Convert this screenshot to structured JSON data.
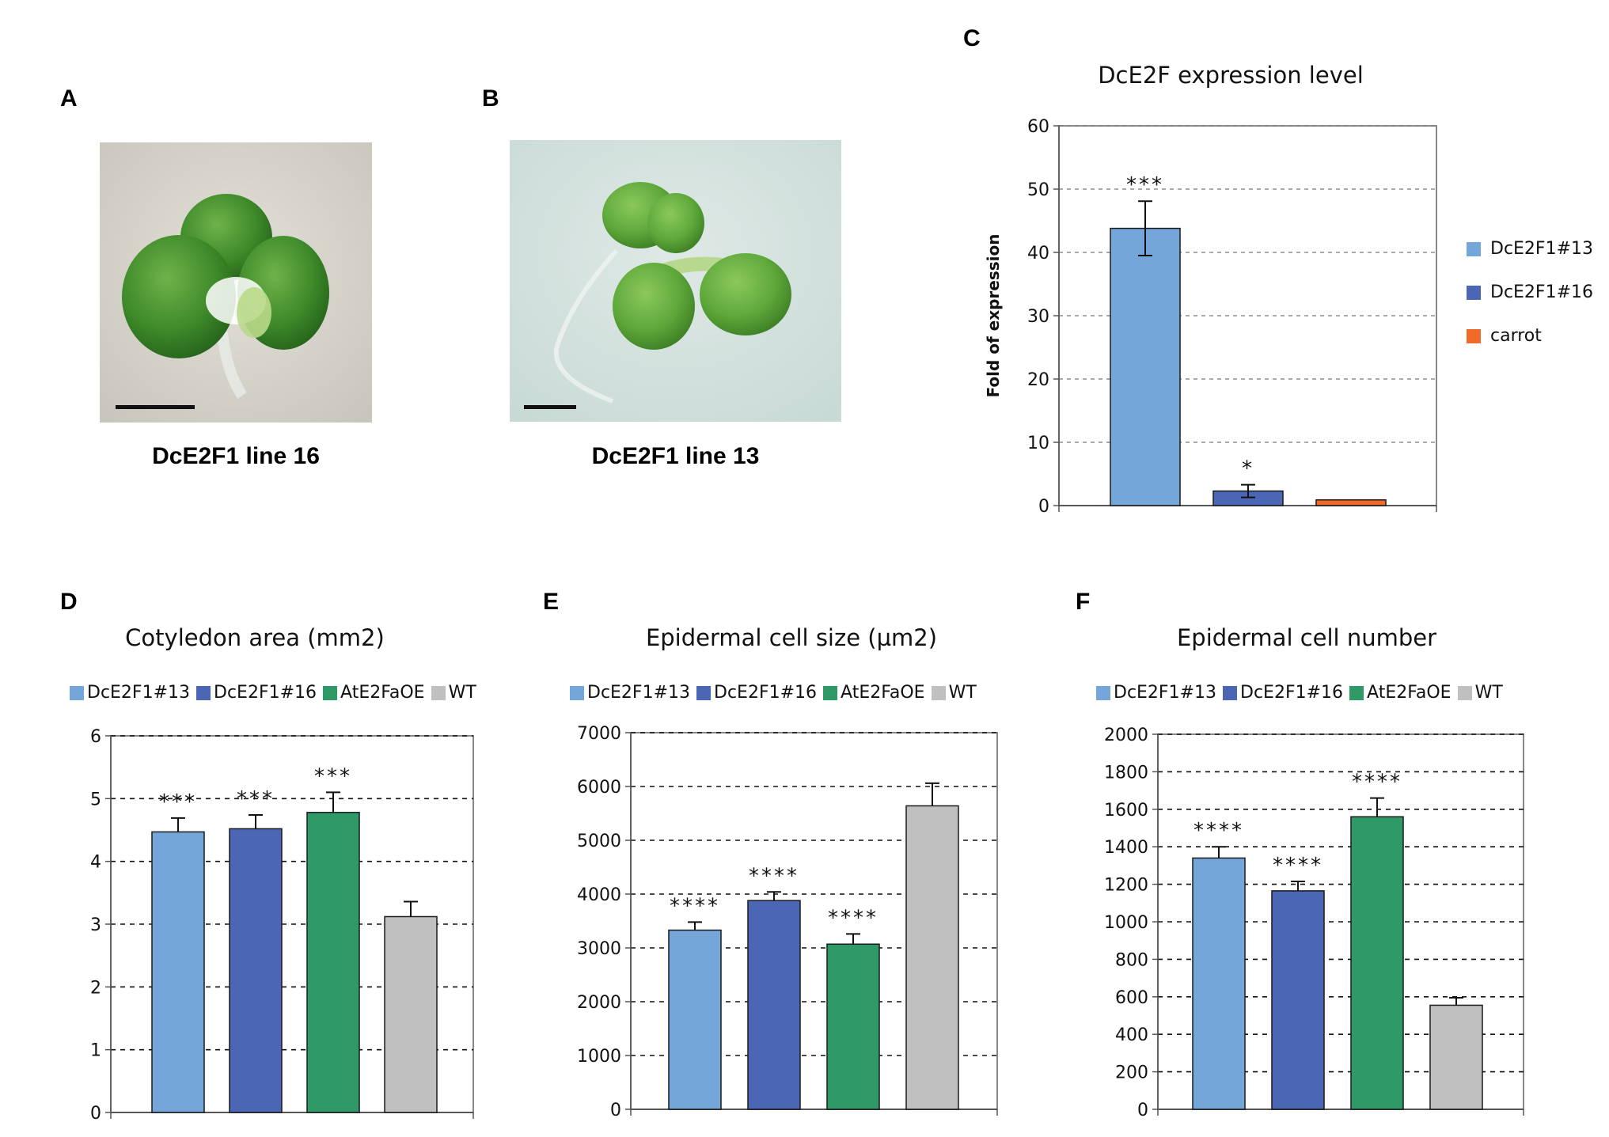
{
  "panels": {
    "a": {
      "letter": "A",
      "caption": "DcE2F1 line 16"
    },
    "b": {
      "letter": "B",
      "caption": "DcE2F1 line 13"
    },
    "c": {
      "letter": "C"
    },
    "d": {
      "letter": "D"
    },
    "e": {
      "letter": "E"
    },
    "f": {
      "letter": "F"
    }
  },
  "colors": {
    "light_blue": "#74a6da",
    "dark_blue": "#4a66b4",
    "green": "#2f9a68",
    "gray": "#c0c0c0",
    "orange": "#f06a2a"
  },
  "chart_data": [
    {
      "id": "C",
      "type": "bar",
      "title": "DcE2F expression level",
      "ylabel": "Fold of expression",
      "xlabel": "",
      "ylim": [
        0,
        60
      ],
      "yticks": [
        0,
        10,
        20,
        30,
        40,
        50,
        60
      ],
      "grid": true,
      "legend_position": "right",
      "categories": [
        "DcE2F1#13",
        "DcE2F1#16",
        "carrot"
      ],
      "values": [
        43.8,
        2.3,
        0.9
      ],
      "errors": [
        4.3,
        1.0,
        0
      ],
      "significance": [
        "***",
        "*",
        ""
      ],
      "colors": [
        "#74a6da",
        "#4a66b4",
        "#f06a2a"
      ]
    },
    {
      "id": "D",
      "type": "bar",
      "title": "Cotyledon area (mm2)",
      "ylabel": "",
      "xlabel": "",
      "ylim": [
        0,
        6
      ],
      "yticks": [
        0,
        1,
        2,
        3,
        4,
        5,
        6
      ],
      "grid": true,
      "legend_position": "top",
      "categories": [
        "DcE2F1#13",
        "DcE2F1#16",
        "AtE2FaOE",
        "WT"
      ],
      "values": [
        4.47,
        4.52,
        4.78,
        3.12
      ],
      "errors": [
        0.22,
        0.22,
        0.32,
        0.24
      ],
      "significance": [
        "***",
        "***",
        "***",
        ""
      ],
      "colors": [
        "#74a6da",
        "#4a66b4",
        "#2f9a68",
        "#c0c0c0"
      ]
    },
    {
      "id": "E",
      "type": "bar",
      "title": "Epidermal cell size (µm2)",
      "ylabel": "",
      "xlabel": "",
      "ylim": [
        0,
        7000
      ],
      "yticks": [
        0,
        1000,
        2000,
        3000,
        4000,
        5000,
        6000,
        7000
      ],
      "grid": true,
      "legend_position": "top",
      "categories": [
        "DcE2F1#13",
        "DcE2F1#16",
        "AtE2FaOE",
        "WT"
      ],
      "values": [
        3330,
        3880,
        3070,
        5640
      ],
      "errors": [
        150,
        160,
        190,
        420
      ],
      "significance": [
        "****",
        "****",
        "****",
        ""
      ],
      "colors": [
        "#74a6da",
        "#4a66b4",
        "#2f9a68",
        "#c0c0c0"
      ]
    },
    {
      "id": "F",
      "type": "bar",
      "title": "Epidermal cell number",
      "ylabel": "",
      "xlabel": "",
      "ylim": [
        0,
        2000
      ],
      "yticks": [
        0,
        200,
        400,
        600,
        800,
        1000,
        1200,
        1400,
        1600,
        1800,
        2000
      ],
      "grid": true,
      "legend_position": "top",
      "categories": [
        "DcE2F1#13",
        "DcE2F1#16",
        "AtE2FaOE",
        "WT"
      ],
      "values": [
        1340,
        1165,
        1560,
        555
      ],
      "errors": [
        60,
        50,
        100,
        40
      ],
      "significance": [
        "****",
        "****",
        "****",
        ""
      ],
      "colors": [
        "#74a6da",
        "#4a66b4",
        "#2f9a68",
        "#c0c0c0"
      ]
    }
  ]
}
